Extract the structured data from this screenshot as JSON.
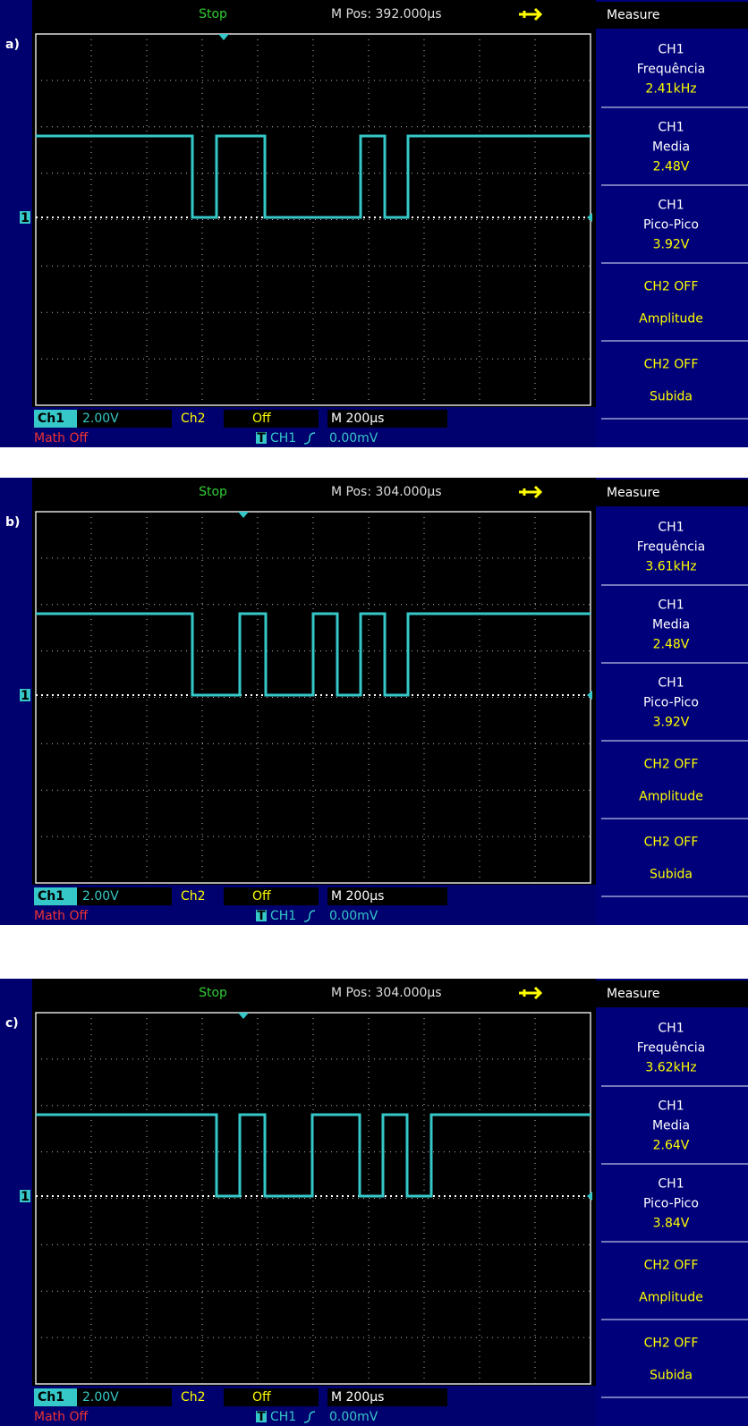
{
  "panels": [
    {
      "label": "a)",
      "status": "Stop",
      "position": "M Pos: 392.000µs",
      "menu_title": "Measure",
      "channel_marker": "1",
      "measures": [
        [
          "CH1",
          "Frequência",
          "2.41kHz"
        ],
        [
          "CH1",
          "Media",
          "2.48V"
        ],
        [
          "CH1",
          "Pico-Pico",
          "3.92V"
        ],
        [
          "CH2  OFF",
          "Amplitude"
        ],
        [
          "CH2  OFF",
          "Subida"
        ]
      ],
      "bottom": {
        "ch1": "Ch1",
        "ch1_scale": "2.00V",
        "ch2": "Ch2",
        "ch2_state": "Off",
        "timebase": "M 200µs",
        "math": "Math Off",
        "trigger_icon": "T",
        "trigger_source": "CH1",
        "trigger_level": "0.00mV"
      }
    },
    {
      "label": "b)",
      "status": "Stop",
      "position": "M Pos: 304.000µs",
      "menu_title": "Measure",
      "channel_marker": "1",
      "measures": [
        [
          "CH1",
          "Frequência",
          "3.61kHz"
        ],
        [
          "CH1",
          "Media",
          "2.48V"
        ],
        [
          "CH1",
          "Pico-Pico",
          "3.92V"
        ],
        [
          "CH2  OFF",
          "Amplitude"
        ],
        [
          "CH2  OFF",
          "Subida"
        ]
      ],
      "bottom": {
        "ch1": "Ch1",
        "ch1_scale": "2.00V",
        "ch2": "Ch2",
        "ch2_state": "Off",
        "timebase": "M 200µs",
        "math": "Math Off",
        "trigger_icon": "T",
        "trigger_source": "CH1",
        "trigger_level": "0.00mV"
      }
    },
    {
      "label": "c)",
      "status": "Stop",
      "position": "M Pos: 304.000µs",
      "menu_title": "Measure",
      "channel_marker": "1",
      "measures": [
        [
          "CH1",
          "Frequência",
          "3.62kHz"
        ],
        [
          "CH1",
          "Media",
          "2.64V"
        ],
        [
          "CH1",
          "Pico-Pico",
          "3.84V"
        ],
        [
          "CH2  OFF",
          "Amplitude"
        ],
        [
          "CH2  OFF",
          "Subida"
        ]
      ],
      "bottom": {
        "ch1": "Ch1",
        "ch1_scale": "2.00V",
        "ch2": "Ch2",
        "ch2_state": "Off",
        "timebase": "M 200µs",
        "math": "Math Off",
        "trigger_icon": "T",
        "trigger_source": "CH1",
        "trigger_level": "0.00mV"
      }
    }
  ]
}
